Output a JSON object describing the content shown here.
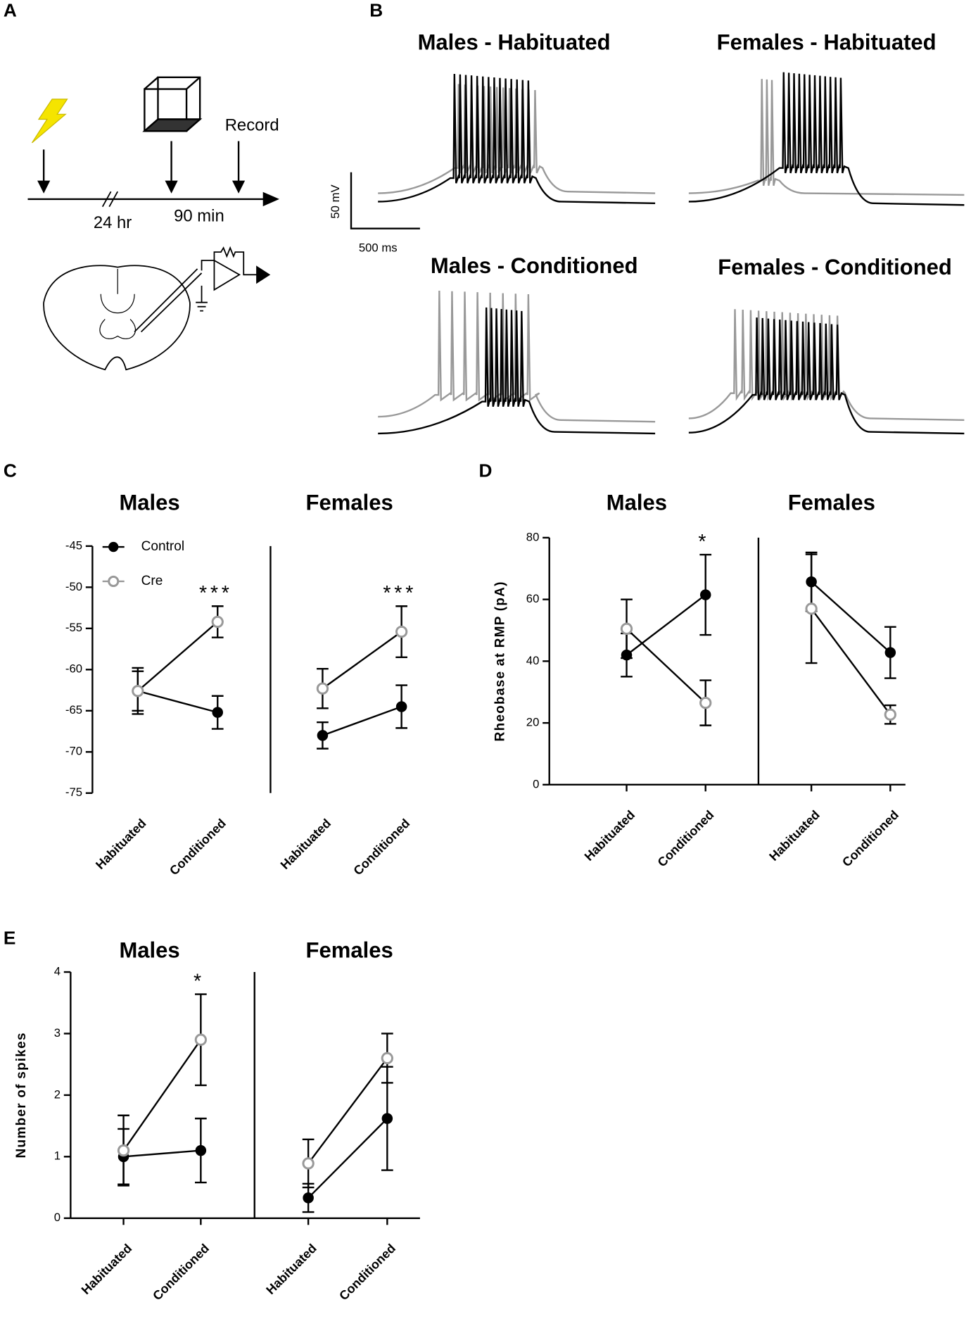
{
  "panel_labels": [
    "A",
    "B",
    "C",
    "D",
    "E"
  ],
  "schematic": {
    "record": "Record",
    "delay1": "24 hr",
    "delay2": "90 min"
  },
  "traces": {
    "titles": [
      "Males - Habituated",
      "Females - Habituated",
      "Males - Conditioned",
      "Females - Conditioned"
    ],
    "scale_y": "50 mV",
    "scale_x": "500 ms"
  },
  "chart_data": [
    {
      "type": "line",
      "ylim": [
        -75,
        -45
      ],
      "yticks": [
        -75,
        -70,
        -65,
        -60,
        -55,
        -50,
        -45
      ],
      "legend": true,
      "series_styles": [
        {
          "name": "Control",
          "color": "#000000",
          "marker": "filled"
        },
        {
          "name": "Cre",
          "color": "#999999",
          "marker": "open"
        }
      ],
      "facets": [
        {
          "title": "Males",
          "categories": [
            "Habituated",
            "Conditioned"
          ],
          "annotation": "***",
          "series": [
            {
              "values": [
                -62.6,
                -65.2
              ],
              "errors": [
                2.4,
                2.0
              ]
            },
            {
              "values": [
                -62.6,
                -54.2
              ],
              "errors": [
                2.8,
                1.9
              ]
            }
          ]
        },
        {
          "title": "Females",
          "categories": [
            "Habituated",
            "Conditioned"
          ],
          "annotation": "***",
          "series": [
            {
              "values": [
                -68.0,
                -64.5
              ],
              "errors": [
                1.6,
                2.6
              ]
            },
            {
              "values": [
                -62.3,
                -55.4
              ],
              "errors": [
                2.4,
                3.1
              ]
            }
          ]
        }
      ]
    },
    {
      "type": "line",
      "ylim": [
        0,
        80
      ],
      "yticks": [
        0,
        20,
        40,
        60,
        80
      ],
      "ylabel": "Rheobase at RMP (pA)",
      "legend": false,
      "series_styles": [
        {
          "color": "#000000",
          "marker": "filled"
        },
        {
          "color": "#999999",
          "marker": "open"
        }
      ],
      "facets": [
        {
          "title": "Males",
          "categories": [
            "Habituated",
            "Conditioned"
          ],
          "annotation": "*",
          "series": [
            {
              "values": [
                42.0,
                61.5
              ],
              "errors": [
                7.0,
                13.0
              ]
            },
            {
              "values": [
                50.5,
                26.5
              ],
              "errors": [
                9.5,
                7.3
              ]
            }
          ]
        },
        {
          "title": "Females",
          "categories": [
            "Habituated",
            "Conditioned"
          ],
          "series": [
            {
              "values": [
                65.7,
                42.8
              ],
              "errors": [
                9.5,
                8.3
              ]
            },
            {
              "values": [
                57.0,
                22.7
              ],
              "errors": [
                17.6,
                3.0
              ]
            }
          ]
        }
      ]
    },
    {
      "type": "line",
      "ylim": [
        0,
        4
      ],
      "yticks": [
        0,
        1,
        2,
        3,
        4
      ],
      "ylabel": "Number of spikes",
      "legend": false,
      "series_styles": [
        {
          "color": "#000000",
          "marker": "filled"
        },
        {
          "color": "#999999",
          "marker": "open"
        }
      ],
      "facets": [
        {
          "title": "Males",
          "categories": [
            "Habituated",
            "Conditioned"
          ],
          "annotation": "*",
          "series": [
            {
              "values": [
                1.0,
                1.1
              ],
              "errors": [
                0.45,
                0.52
              ]
            },
            {
              "values": [
                1.1,
                2.9
              ],
              "errors": [
                0.57,
                0.74
              ]
            }
          ]
        },
        {
          "title": "Females",
          "categories": [
            "Habituated",
            "Conditioned"
          ],
          "series": [
            {
              "values": [
                0.33,
                1.62
              ],
              "errors": [
                0.23,
                0.84
              ]
            },
            {
              "values": [
                0.89,
                2.6
              ],
              "errors": [
                0.39,
                0.4
              ]
            }
          ]
        }
      ]
    }
  ]
}
